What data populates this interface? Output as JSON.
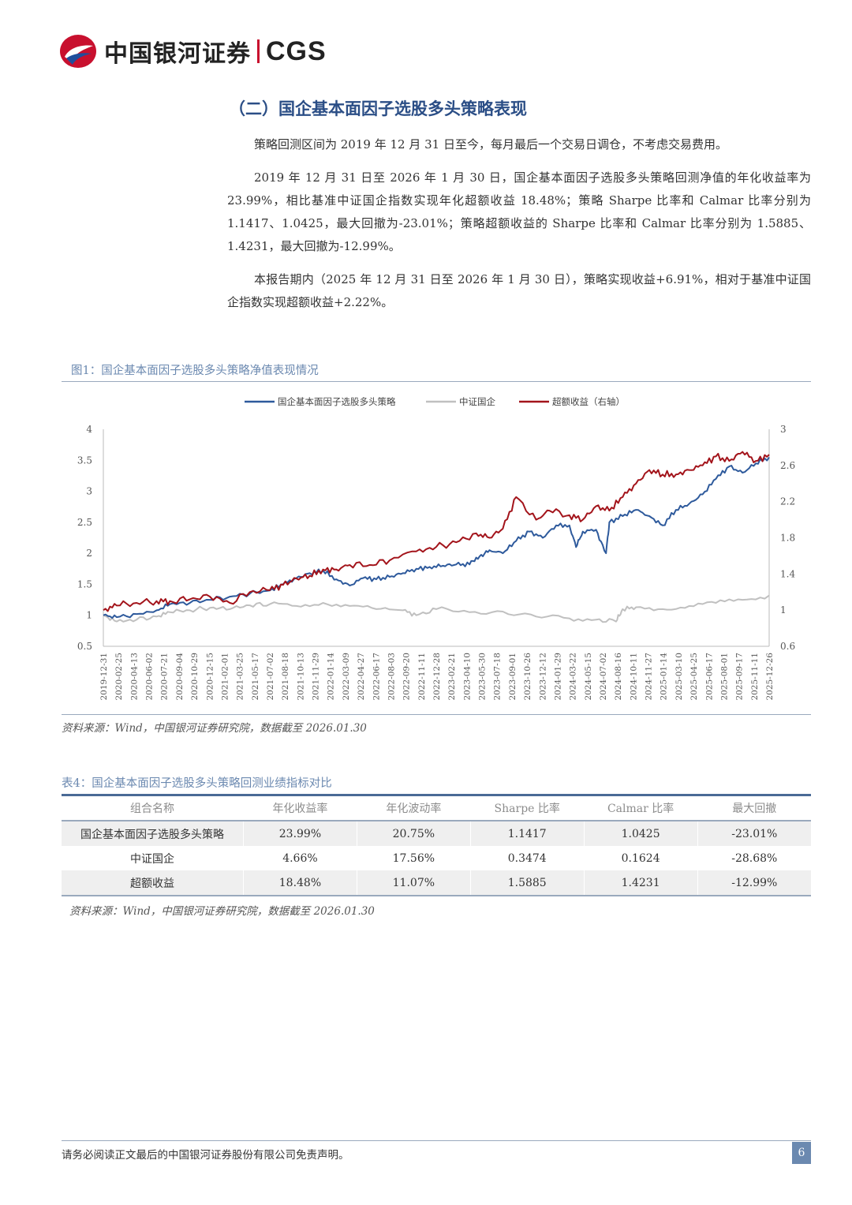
{
  "header": {
    "brand_cn": "中国银河证券",
    "brand_en": "CGS"
  },
  "section_title": "（二）国企基本面因子选股多头策略表现",
  "paragraphs": [
    "策略回测区间为 2019 年 12 月 31 日至今，每月最后一个交易日调仓，不考虑交易费用。",
    "2019 年 12 月 31 日至 2026 年 1 月 30 日，国企基本面因子选股多头策略回测净值的年化收益率为 23.99%，相比基准中证国企指数实现年化超额收益 18.48%；策略 Sharpe 比率和 Calmar 比率分别为 1.1417、1.0425，最大回撤为-23.01%；策略超额收益的 Sharpe 比率和 Calmar 比率分别为 1.5885、1.4231，最大回撤为-12.99%。",
    "本报告期内（2025 年 12 月 31 日至 2026 年 1 月 30 日），策略实现收益+6.91%，相对于基准中证国企指数实现超额收益+2.22%。"
  ],
  "figure": {
    "title": "图1：国企基本面因子选股多头策略净值表现情况",
    "source": "资料来源：Wind，中国银河证券研究院，数据截至 2026.01.30"
  },
  "chart_data": {
    "type": "line",
    "legend": [
      "国企基本面因子选股多头策略",
      "中证国企",
      "超额收益（右轴）"
    ],
    "legend_position": "top",
    "y_left": {
      "min": 0.5,
      "max": 4,
      "ticks": [
        "4",
        "3.5",
        "3",
        "2.5",
        "2",
        "1.5",
        "1",
        "0.5"
      ]
    },
    "y_right": {
      "min": 0.6,
      "max": 3,
      "ticks": [
        "3",
        "2.6",
        "2.2",
        "1.8",
        "1.4",
        "1",
        "0.6"
      ]
    },
    "x_labels": [
      "2019-12-31",
      "2020-02-25",
      "2020-04-13",
      "2020-06-02",
      "2020-07-21",
      "2020-09-04",
      "2020-10-29",
      "2020-12-15",
      "2021-02-01",
      "2021-03-25",
      "2021-05-17",
      "2021-07-02",
      "2021-08-18",
      "2021-10-13",
      "2021-11-29",
      "2022-01-14",
      "2022-03-09",
      "2022-04-27",
      "2022-06-17",
      "2022-08-03",
      "2022-09-20",
      "2022-11-11",
      "2022-12-28",
      "2023-02-21",
      "2023-04-10",
      "2023-05-30",
      "2023-07-18",
      "2023-09-01",
      "2023-10-26",
      "2023-12-12",
      "2024-01-29",
      "2024-03-22",
      "2024-05-15",
      "2024-07-02",
      "2024-08-16",
      "2024-10-11",
      "2024-11-27",
      "2025-01-14",
      "2025-03-10",
      "2025-04-25",
      "2025-06-17",
      "2025-08-01",
      "2025-09-17",
      "2025-11-11",
      "2025-12-26"
    ],
    "grid": false,
    "series": [
      {
        "name": "国企基本面因子选股多头策略",
        "axis": "left",
        "color": "#2e5a9c",
        "t": [
          0,
          0.02,
          0.05,
          0.08,
          0.1,
          0.13,
          0.16,
          0.19,
          0.22,
          0.25,
          0.27,
          0.29,
          0.31,
          0.33,
          0.35,
          0.37,
          0.39,
          0.41,
          0.43,
          0.45,
          0.47,
          0.49,
          0.51,
          0.53,
          0.55,
          0.565,
          0.58,
          0.6,
          0.62,
          0.64,
          0.66,
          0.68,
          0.7,
          0.71,
          0.72,
          0.74,
          0.755,
          0.76,
          0.78,
          0.8,
          0.82,
          0.84,
          0.86,
          0.88,
          0.9,
          0.92,
          0.94,
          0.96,
          0.98,
          1.0
        ],
        "values": [
          1.0,
          0.97,
          1.02,
          1.08,
          1.18,
          1.2,
          1.25,
          1.3,
          1.35,
          1.4,
          1.5,
          1.6,
          1.68,
          1.72,
          1.58,
          1.48,
          1.6,
          1.58,
          1.62,
          1.68,
          1.75,
          1.78,
          1.8,
          1.82,
          1.82,
          1.95,
          2.05,
          2.0,
          2.2,
          2.35,
          2.25,
          2.45,
          2.45,
          2.1,
          2.35,
          2.38,
          2.0,
          2.5,
          2.6,
          2.7,
          2.6,
          2.45,
          2.7,
          2.8,
          2.95,
          3.2,
          3.4,
          3.3,
          3.45,
          3.55
        ]
      },
      {
        "name": "中证国企",
        "axis": "left",
        "color": "#c0c0c0",
        "t": [
          0,
          0.02,
          0.05,
          0.08,
          0.1,
          0.13,
          0.16,
          0.19,
          0.22,
          0.25,
          0.29,
          0.33,
          0.37,
          0.41,
          0.45,
          0.47,
          0.5,
          0.55,
          0.6,
          0.65,
          0.7,
          0.74,
          0.77,
          0.78,
          0.8,
          0.84,
          0.88,
          0.92,
          0.96,
          1.0
        ],
        "values": [
          1.0,
          0.9,
          0.93,
          0.98,
          1.05,
          1.08,
          1.12,
          1.1,
          1.16,
          1.18,
          1.15,
          1.2,
          1.15,
          1.1,
          1.08,
          1.0,
          1.1,
          1.05,
          1.06,
          0.98,
          0.95,
          0.93,
          0.9,
          1.1,
          1.13,
          1.1,
          1.15,
          1.2,
          1.25,
          1.32
        ]
      },
      {
        "name": "超额收益（右轴）",
        "axis": "right",
        "color": "#a3141b",
        "t": [
          0,
          0.02,
          0.05,
          0.08,
          0.1,
          0.13,
          0.16,
          0.19,
          0.22,
          0.25,
          0.27,
          0.29,
          0.31,
          0.33,
          0.35,
          0.37,
          0.4,
          0.43,
          0.47,
          0.5,
          0.53,
          0.56,
          0.58,
          0.6,
          0.62,
          0.65,
          0.67,
          0.7,
          0.72,
          0.74,
          0.76,
          0.78,
          0.8,
          0.82,
          0.84,
          0.86,
          0.88,
          0.9,
          0.92,
          0.94,
          0.96,
          0.98,
          1.0
        ],
        "values": [
          1.0,
          1.05,
          1.08,
          1.1,
          1.1,
          1.12,
          1.15,
          1.08,
          1.2,
          1.22,
          1.28,
          1.35,
          1.38,
          1.45,
          1.45,
          1.5,
          1.5,
          1.55,
          1.65,
          1.7,
          1.75,
          1.85,
          1.8,
          1.9,
          2.25,
          2.0,
          2.1,
          2.05,
          2.0,
          2.15,
          2.1,
          2.25,
          2.4,
          2.55,
          2.5,
          2.5,
          2.55,
          2.6,
          2.7,
          2.65,
          2.75,
          2.65,
          2.72
        ]
      }
    ]
  },
  "table": {
    "title": "表4：国企基本面因子选股多头策略回测业绩指标对比",
    "headers": [
      "组合名称",
      "年化收益率",
      "年化波动率",
      "Sharpe 比率",
      "Calmar 比率",
      "最大回撤"
    ],
    "rows": [
      [
        "国企基本面因子选股多头策略",
        "23.99%",
        "20.75%",
        "1.1417",
        "1.0425",
        "-23.01%"
      ],
      [
        "中证国企",
        "4.66%",
        "17.56%",
        "0.3474",
        "0.1624",
        "-28.68%"
      ],
      [
        "超额收益",
        "18.48%",
        "11.07%",
        "1.5885",
        "1.4231",
        "-12.99%"
      ]
    ],
    "source": "资料来源：Wind，中国银河证券研究院，数据截至 2026.01.30"
  },
  "footer": {
    "note": "请务必阅读正文最后的中国银河证券股份有限公司免责声明。",
    "page": "6"
  }
}
